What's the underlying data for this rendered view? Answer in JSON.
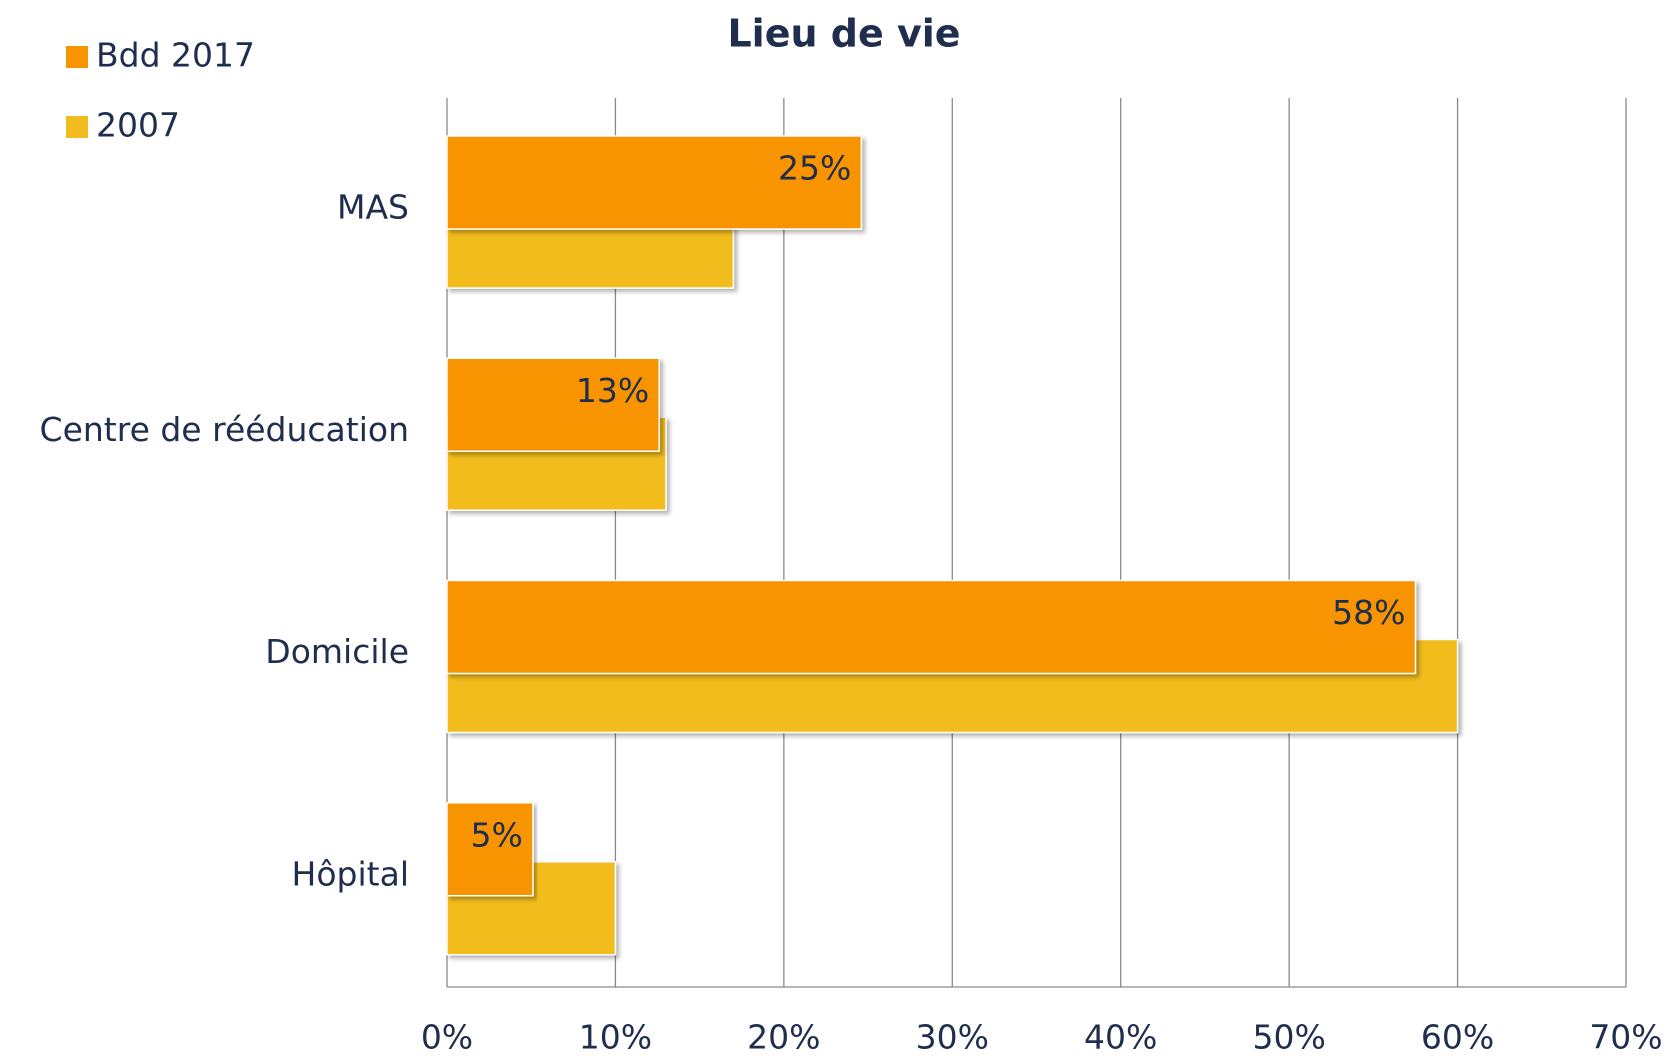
{
  "chart_data": {
    "type": "bar",
    "orientation": "horizontal",
    "title": "Lieu de vie",
    "categories": [
      "MAS",
      "Centre de rééducation",
      "Domicile",
      "Hôpital"
    ],
    "series": [
      {
        "name": "Bdd 2017",
        "color": "#f79400",
        "values": [
          24.6,
          12.6,
          57.5,
          5.1
        ],
        "value_labels": [
          "25%",
          "13%",
          "58%",
          "5%"
        ]
      },
      {
        "name": "2007",
        "color": "#f2bc1f",
        "values": [
          17,
          13,
          60,
          10
        ]
      }
    ],
    "xlim": [
      0,
      70
    ],
    "xticks": [
      {
        "value": 0,
        "label": "0%"
      },
      {
        "value": 10,
        "label": "10%"
      },
      {
        "value": 20,
        "label": "20%"
      },
      {
        "value": 30,
        "label": "30%"
      },
      {
        "value": 40,
        "label": "40%"
      },
      {
        "value": 50,
        "label": "50%"
      },
      {
        "value": 60,
        "label": "60%"
      },
      {
        "value": 70,
        "label": "70%"
      }
    ],
    "grid": true,
    "legend": "top-left"
  }
}
